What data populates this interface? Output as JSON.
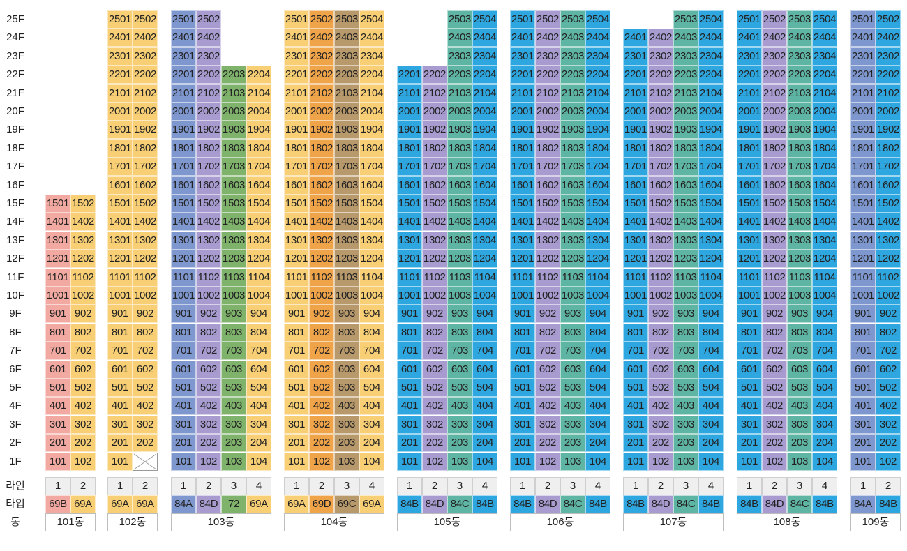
{
  "floor_labels": [
    "25F",
    "24F",
    "23F",
    "22F",
    "21F",
    "20F",
    "19F",
    "18F",
    "17F",
    "16F",
    "15F",
    "14F",
    "13F",
    "12F",
    "11F",
    "10F",
    "9F",
    "8F",
    "7F",
    "6F",
    "5F",
    "4F",
    "3F",
    "2F",
    "1F"
  ],
  "row_labels": {
    "line": "라인",
    "type": "타입",
    "building": "동"
  },
  "colors": {
    "69B": "#f2a9a1",
    "69A": "#f8cf75",
    "84A": "#7f97cf",
    "84D": "#a79bd0",
    "72": "#7fb36b",
    "69D": "#f0a44a",
    "69C": "#b8996b",
    "84B": "#2ea7e0",
    "84C": "#5fb5a3"
  },
  "buildings": [
    {
      "name": "101동",
      "lines": [
        {
          "line": "1",
          "type": "69B",
          "max_floor": 15
        },
        {
          "line": "2",
          "type": "69A",
          "max_floor": 15
        }
      ]
    },
    {
      "name": "102동",
      "lines": [
        {
          "line": "1",
          "type": "69A",
          "max_floor": 25
        },
        {
          "line": "2",
          "type": "69A",
          "max_floor": 25,
          "empty_floors": [
            1
          ]
        }
      ]
    },
    {
      "name": "103동",
      "lines": [
        {
          "line": "1",
          "type": "84A",
          "max_floor": 25
        },
        {
          "line": "2",
          "type": "84D",
          "max_floor": 25
        },
        {
          "line": "3",
          "type": "72",
          "max_floor": 22
        },
        {
          "line": "4",
          "type": "69A",
          "max_floor": 22
        }
      ]
    },
    {
      "name": "104동",
      "lines": [
        {
          "line": "1",
          "type": "69A",
          "max_floor": 25
        },
        {
          "line": "2",
          "type": "69D",
          "max_floor": 25
        },
        {
          "line": "3",
          "type": "69C",
          "max_floor": 25
        },
        {
          "line": "4",
          "type": "69A",
          "max_floor": 25
        }
      ]
    },
    {
      "name": "105동",
      "lines": [
        {
          "line": "1",
          "type": "84B",
          "max_floor": 22
        },
        {
          "line": "2",
          "type": "84D",
          "max_floor": 22
        },
        {
          "line": "3",
          "type": "84C",
          "max_floor": 25
        },
        {
          "line": "4",
          "type": "84B",
          "max_floor": 25
        }
      ]
    },
    {
      "name": "106동",
      "lines": [
        {
          "line": "1",
          "type": "84B",
          "max_floor": 25
        },
        {
          "line": "2",
          "type": "84D",
          "max_floor": 25
        },
        {
          "line": "3",
          "type": "84C",
          "max_floor": 25
        },
        {
          "line": "4",
          "type": "84B",
          "max_floor": 25
        }
      ]
    },
    {
      "name": "107동",
      "lines": [
        {
          "line": "1",
          "type": "84B",
          "max_floor": 24
        },
        {
          "line": "2",
          "type": "84D",
          "max_floor": 24
        },
        {
          "line": "3",
          "type": "84C",
          "max_floor": 25
        },
        {
          "line": "4",
          "type": "84B",
          "max_floor": 25
        }
      ]
    },
    {
      "name": "108동",
      "lines": [
        {
          "line": "1",
          "type": "84B",
          "max_floor": 25
        },
        {
          "line": "2",
          "type": "84D",
          "max_floor": 25
        },
        {
          "line": "3",
          "type": "84C",
          "max_floor": 25
        },
        {
          "line": "4",
          "type": "84B",
          "max_floor": 25
        }
      ]
    },
    {
      "name": "109동",
      "lines": [
        {
          "line": "1",
          "type": "84A",
          "max_floor": 25
        },
        {
          "line": "2",
          "type": "84B",
          "max_floor": 25
        }
      ]
    }
  ]
}
